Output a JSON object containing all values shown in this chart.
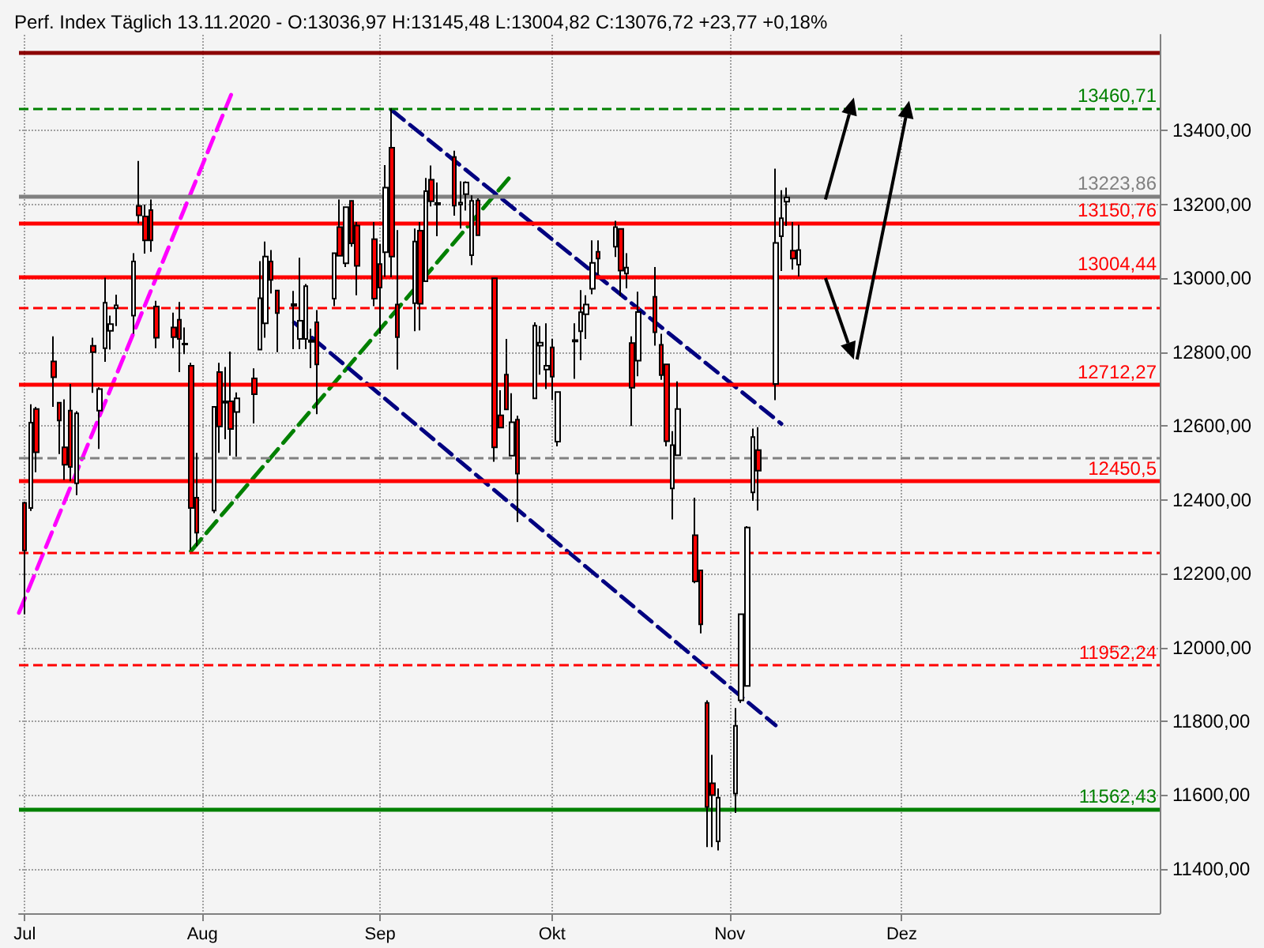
{
  "chart_data": {
    "type": "candlestick",
    "title": "Perf. Index Täglich 13.11.2020 - O:13036,97 H:13145,48 L:13004,82 C:13076,72 +23,77 +0,18%",
    "x": [
      "2020-07-01",
      "2020-07-02",
      "2020-07-03",
      "2020-07-06",
      "2020-07-07",
      "2020-07-08",
      "2020-07-09",
      "2020-07-10",
      "2020-07-13",
      "2020-07-14",
      "2020-07-15",
      "2020-07-16",
      "2020-07-17",
      "2020-07-20",
      "2020-07-21",
      "2020-07-22",
      "2020-07-23",
      "2020-07-24",
      "2020-07-27",
      "2020-07-28",
      "2020-07-29",
      "2020-07-30",
      "2020-07-31",
      "2020-08-03",
      "2020-08-04",
      "2020-08-05",
      "2020-08-06",
      "2020-08-07",
      "2020-08-10",
      "2020-08-11",
      "2020-08-12",
      "2020-08-13",
      "2020-08-14",
      "2020-08-17",
      "2020-08-18",
      "2020-08-19",
      "2020-08-20",
      "2020-08-21",
      "2020-08-24",
      "2020-08-25",
      "2020-08-26",
      "2020-08-27",
      "2020-08-28",
      "2020-08-31",
      "2020-09-01",
      "2020-09-02",
      "2020-09-03",
      "2020-09-04",
      "2020-09-07",
      "2020-09-08",
      "2020-09-09",
      "2020-09-10",
      "2020-09-11",
      "2020-09-14",
      "2020-09-15",
      "2020-09-16",
      "2020-09-17",
      "2020-09-18",
      "2020-09-21",
      "2020-09-22",
      "2020-09-23",
      "2020-09-24",
      "2020-09-25",
      "2020-09-28",
      "2020-09-29",
      "2020-09-30",
      "2020-10-01",
      "2020-10-02",
      "2020-10-05",
      "2020-10-06",
      "2020-10-07",
      "2020-10-08",
      "2020-10-09",
      "2020-10-12",
      "2020-10-13",
      "2020-10-14",
      "2020-10-15",
      "2020-10-16",
      "2020-10-19",
      "2020-10-20",
      "2020-10-21",
      "2020-10-22",
      "2020-10-23",
      "2020-10-26",
      "2020-10-27",
      "2020-10-28",
      "2020-10-29",
      "2020-10-30",
      "2020-11-02",
      "2020-11-03",
      "2020-11-04",
      "2020-11-05",
      "2020-11-06",
      "2020-11-09",
      "2020-11-10",
      "2020-11-11",
      "2020-11-12",
      "2020-11-13"
    ],
    "ohlc": [
      [
        12392,
        12395,
        12090,
        12263
      ],
      [
        12378,
        12659,
        12370,
        12609
      ],
      [
        12646,
        12652,
        12475,
        12529
      ],
      [
        12775,
        12843,
        12652,
        12732
      ],
      [
        12663,
        12663,
        12524,
        12615
      ],
      [
        12542,
        12672,
        12454,
        12495
      ],
      [
        12642,
        12714,
        12450,
        12489
      ],
      [
        12445,
        12640,
        12413,
        12634
      ],
      [
        12817,
        12839,
        12690,
        12800
      ],
      [
        12642,
        12705,
        12538,
        12700
      ],
      [
        12811,
        13002,
        12774,
        12934
      ],
      [
        12858,
        12899,
        12807,
        12876
      ],
      [
        12919,
        12956,
        12871,
        12927
      ],
      [
        12899,
        13068,
        12850,
        13046
      ],
      [
        13196,
        13318,
        13149,
        13171
      ],
      [
        13168,
        13200,
        13067,
        13103
      ],
      [
        13185,
        13214,
        13072,
        13103
      ],
      [
        12924,
        12939,
        12811,
        12839
      ],
      [
        12867,
        12907,
        12811,
        12841
      ],
      [
        12888,
        12936,
        12746,
        12836
      ],
      [
        12823,
        12867,
        12795,
        12821
      ],
      [
        12763,
        12771,
        12264,
        12378
      ],
      [
        12406,
        12527,
        12274,
        12311
      ],
      [
        12371,
        12652,
        12364,
        12652
      ],
      [
        12746,
        12771,
        12527,
        12599
      ],
      [
        12667,
        12760,
        12564,
        12663
      ],
      [
        12667,
        12802,
        12520,
        12592
      ],
      [
        12638,
        12691,
        12517,
        12675
      ],
      [
        12729,
        12756,
        12607,
        12686
      ],
      [
        12807,
        13047,
        12807,
        12946
      ],
      [
        12878,
        13100,
        12839,
        13059
      ],
      [
        13046,
        13077,
        12959,
        12996
      ],
      [
        12967,
        12967,
        12800,
        12906
      ],
      [
        12926,
        12966,
        12808,
        12930
      ],
      [
        12836,
        13056,
        12808,
        12885
      ],
      [
        12836,
        12985,
        12808,
        12979
      ],
      [
        12832,
        12864,
        12757,
        12828
      ],
      [
        12881,
        12914,
        12632,
        12767
      ],
      [
        12945,
        13068,
        12925,
        13068
      ],
      [
        13139,
        13214,
        13061,
        13061
      ],
      [
        13041,
        13193,
        13031,
        13193
      ],
      [
        13210,
        13210,
        13086,
        13095
      ],
      [
        13143,
        13153,
        12954,
        13034
      ],
      [
        13106,
        13153,
        12925,
        12945
      ],
      [
        13039,
        13093,
        12850,
        12975
      ],
      [
        13071,
        13307,
        13004,
        13246
      ],
      [
        13354,
        13461,
        13003,
        13059
      ],
      [
        12929,
        13131,
        12753,
        12841
      ],
      [
        12933,
        13135,
        12857,
        13100
      ],
      [
        13129,
        13153,
        12859,
        12931
      ],
      [
        12992,
        13272,
        12992,
        13236
      ],
      [
        13267,
        13306,
        13195,
        13209
      ],
      [
        13204,
        13260,
        13114,
        13200
      ],
      [
        13329,
        13346,
        13170,
        13197
      ],
      [
        13200,
        13263,
        13135,
        13205
      ],
      [
        13228,
        13263,
        13184,
        13260
      ],
      [
        13063,
        13225,
        13036,
        13210
      ],
      [
        13211,
        13217,
        13117,
        13117
      ],
      [
        13000,
        13000,
        12503,
        12542
      ],
      [
        12629,
        12697,
        12596,
        12596
      ],
      [
        12739,
        12836,
        12645,
        12645
      ],
      [
        12520,
        12689,
        12520,
        12610
      ],
      [
        12617,
        12628,
        12340,
        12471
      ],
      [
        12675,
        12881,
        12675,
        12872
      ],
      [
        12818,
        12871,
        12739,
        12826
      ],
      [
        12753,
        12878,
        12700,
        12763
      ],
      [
        12813,
        12836,
        12670,
        12734
      ],
      [
        12558,
        12692,
        12545,
        12692
      ],
      [
        12829,
        12878,
        12728,
        12833
      ],
      [
        12857,
        12968,
        12778,
        12908
      ],
      [
        12903,
        12954,
        12836,
        12929
      ],
      [
        12972,
        13103,
        12957,
        13042
      ],
      [
        13072,
        13103,
        13010,
        13054
      ],
      [
        13086,
        13156,
        13058,
        13139
      ],
      [
        13134,
        13134,
        12952,
        13021
      ],
      [
        13013,
        13068,
        12973,
        13029
      ],
      [
        12825,
        12843,
        12600,
        12704
      ],
      [
        12777,
        12964,
        12735,
        12909
      ],
      [
        12950,
        13031,
        12818,
        12854
      ],
      [
        12820,
        12850,
        12725,
        12738
      ],
      [
        12767,
        12767,
        12545,
        12559
      ],
      [
        12431,
        12586,
        12347,
        12548
      ],
      [
        12521,
        12721,
        12521,
        12646
      ],
      [
        12304,
        12406,
        12174,
        12179
      ],
      [
        12209,
        12209,
        12038,
        12063
      ],
      [
        11850,
        11857,
        11459,
        11568
      ],
      [
        11632,
        11709,
        11459,
        11600
      ],
      [
        11475,
        11618,
        11450,
        11593
      ],
      [
        11604,
        11836,
        11552,
        11788
      ],
      [
        11857,
        12090,
        11850,
        12090
      ],
      [
        11896,
        12329,
        11896,
        12325
      ],
      [
        12420,
        12593,
        12397,
        12570
      ],
      [
        12535,
        12597,
        12371,
        12479
      ],
      [
        12714,
        13297,
        12670,
        13096
      ],
      [
        13114,
        13239,
        13020,
        13163
      ],
      [
        13208,
        13246,
        13142,
        13219
      ],
      [
        13075,
        13153,
        13024,
        13054
      ],
      [
        13037,
        13145,
        13005,
        13077
      ]
    ],
    "colors": [
      "#ff0000",
      "#ffffff",
      "#ff0000",
      "#ff0000",
      "#ff0000",
      "#ff0000",
      "#ff0000",
      "#ffffff",
      "#ff0000",
      "#ffffff",
      "#ffffff",
      "#ffffff",
      "#ffffff",
      "#ffffff",
      "#ff0000",
      "#ff0000",
      "#ff0000",
      "#ff0000",
      "#ff0000",
      "#ff0000",
      "#ff0000",
      "#ff0000",
      "#ff0000",
      "#ffffff",
      "#ff0000",
      "#ff0000",
      "#ff0000",
      "#ffffff",
      "#ff0000",
      "#ffffff",
      "#ffffff",
      "#ff0000",
      "#ff0000",
      "#ffffff",
      "#ffffff",
      "#ffffff",
      "#ff0000",
      "#ff0000",
      "#ffffff",
      "#ff0000",
      "#ffffff",
      "#ff0000",
      "#ff0000",
      "#ff0000",
      "#ff0000",
      "#ffffff",
      "#ff0000",
      "#ff0000",
      "#ffffff",
      "#ff0000",
      "#ffffff",
      "#ff0000",
      "#ff0000",
      "#ff0000",
      "#ffffff",
      "#ffffff",
      "#ffffff",
      "#ff0000",
      "#ff0000",
      "#ff0000",
      "#ff0000",
      "#ffffff",
      "#ff0000",
      "#ffffff",
      "#ffffff",
      "#ffffff",
      "#ff0000",
      "#ffffff",
      "#ffffff",
      "#ffffff",
      "#ffffff",
      "#ffffff",
      "#ff0000",
      "#ffffff",
      "#ff0000",
      "#ffffff",
      "#ff0000",
      "#ffffff",
      "#ff0000",
      "#ff0000",
      "#ff0000",
      "#ffffff",
      "#ffffff",
      "#ff0000",
      "#ff0000",
      "#ff0000",
      "#ff0000",
      "#ffffff",
      "#ffffff",
      "#ffffff",
      "#ffffff",
      "#ffffff",
      "#ff0000",
      "#ffffff",
      "#ffffff",
      "#ffffff",
      "#ff0000",
      "#ffffff"
    ],
    "series": [
      {
        "type": "line",
        "x": [
          "2020-06-30",
          "2020-08-06"
        ],
        "values": [
          12094,
          13497
        ],
        "color": "#ff00ff",
        "line_style": "dashed"
      },
      {
        "type": "line",
        "x": [
          "2020-07-30",
          "2020-09-24"
        ],
        "values": [
          12261,
          13281
        ],
        "color": "#008000",
        "line_style": "dashed"
      },
      {
        "type": "line",
        "x": [
          "2020-09-03",
          "2020-11-10"
        ],
        "values": [
          13456,
          12606
        ],
        "color": "#000080",
        "line_style": "dashed"
      },
      {
        "type": "line",
        "x": [
          "2020-08-17",
          "2020-11-09"
        ],
        "values": [
          12880,
          11789
        ],
        "color": "#000080",
        "line_style": "dashed"
      }
    ],
    "ref_lines": [
      {
        "axis": "y",
        "value": 13610,
        "label": null,
        "color": "#8b0000"
      },
      {
        "axis": "y",
        "value": 13460.71,
        "label": "13460,71",
        "color": "#008000",
        "line_style": "dashed"
      },
      {
        "axis": "y",
        "value": 13223.86,
        "label": "13223,86",
        "color": "#808080"
      },
      {
        "axis": "y",
        "value": 13150.76,
        "label": "13150,76",
        "color": "#ff0000"
      },
      {
        "axis": "y",
        "value": 13004.44,
        "label": "13004,44",
        "color": "#ff0000"
      },
      {
        "axis": "y",
        "value": 12921,
        "label": null,
        "color": "#ff0000",
        "line_style": "dashed"
      },
      {
        "axis": "y",
        "value": 12712.27,
        "label": "12712,27",
        "color": "#ff0000"
      },
      {
        "axis": "y",
        "value": 12515,
        "label": null,
        "color": "#808080",
        "line_style": "dashed"
      },
      {
        "axis": "y",
        "value": 12450.5,
        "label": "12450,5",
        "color": "#ff0000"
      },
      {
        "axis": "y",
        "value": 12255,
        "label": null,
        "color": "#ff0000",
        "line_style": "dashed"
      },
      {
        "axis": "y",
        "value": 11952.24,
        "label": "11952,24",
        "color": "#ff0000",
        "line_style": "dashed"
      },
      {
        "axis": "y",
        "value": 11562.43,
        "label": "11562,43",
        "color": "#008000"
      }
    ],
    "xlim": [
      "2020-06-30",
      "2021-01-15"
    ],
    "xticks": [
      {
        "value": "2020-07-01",
        "label": "Jul"
      },
      {
        "value": "2020-08-01",
        "label": "Aug"
      },
      {
        "value": "2020-09-01",
        "label": "Sep"
      },
      {
        "value": "2020-10-01",
        "label": "Okt"
      },
      {
        "value": "2020-11-01",
        "label": "Nov"
      },
      {
        "value": "2020-12-01",
        "label": "Dez"
      }
    ],
    "ylim": [
      11280,
      13660
    ],
    "yticks": [
      {
        "value": 11400,
        "label": "11400,00"
      },
      {
        "value": 11600,
        "label": "11600,00"
      },
      {
        "value": 11800,
        "label": "11800,00"
      },
      {
        "value": 12000,
        "label": "12000,00"
      },
      {
        "value": 12200,
        "label": "12200,00"
      },
      {
        "value": 12400,
        "label": "12400,00"
      },
      {
        "value": 12600,
        "label": "12600,00"
      },
      {
        "value": 12800,
        "label": "12800,00"
      },
      {
        "value": 13000,
        "label": "13000,00"
      },
      {
        "value": 13200,
        "label": "13200,00"
      },
      {
        "value": 13400,
        "label": "13400,00"
      }
    ],
    "grid": true
  }
}
